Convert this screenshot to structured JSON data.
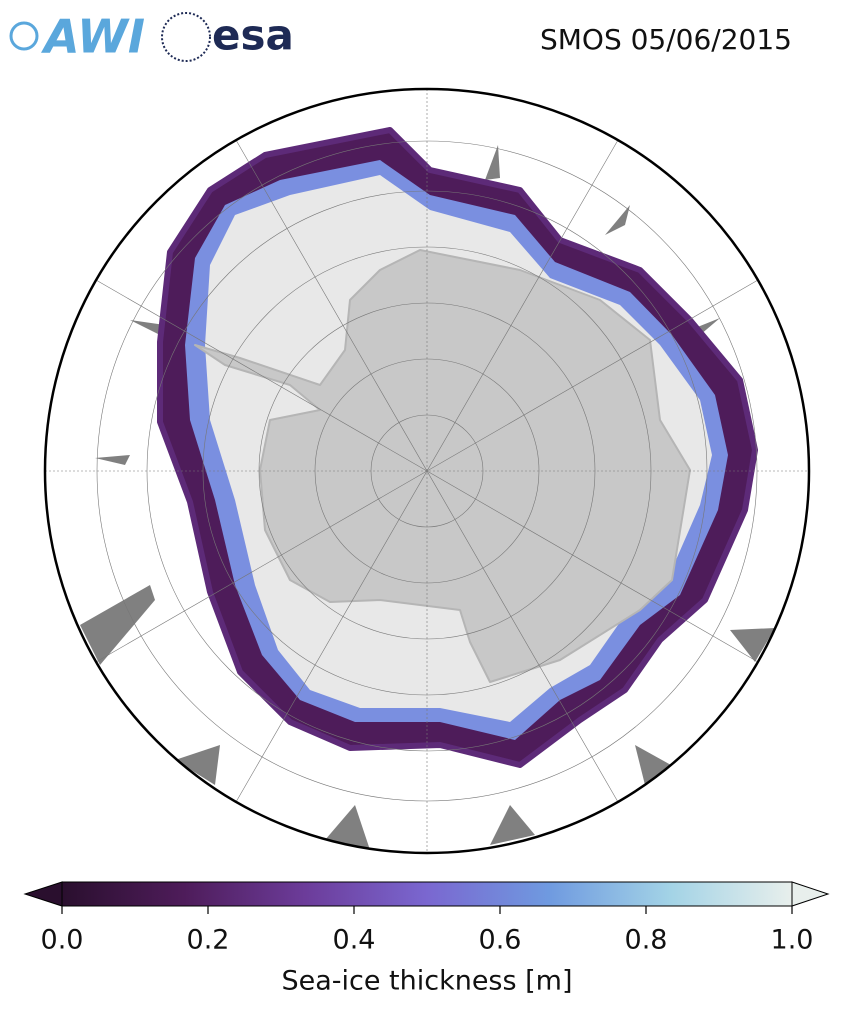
{
  "header": {
    "logos": [
      "AWI",
      "esa"
    ],
    "title": "SMOS 05/06/2015"
  },
  "colorbar": {
    "label": "Sea-ice thickness [m]",
    "lim": [
      0,
      1
    ],
    "ticks": [
      {
        "value": 0,
        "label": "0.0"
      },
      0.2,
      0.4,
      0.6,
      0.8,
      {
        "value": 1,
        "label": "1.0"
      }
    ],
    "colors": [
      "#2a0f2e",
      "#4e1c5a",
      "#6c3c9a",
      "#7a67d0",
      "#6f9ae0",
      "#a3d3e6",
      "#e8efec"
    ]
  }
}
